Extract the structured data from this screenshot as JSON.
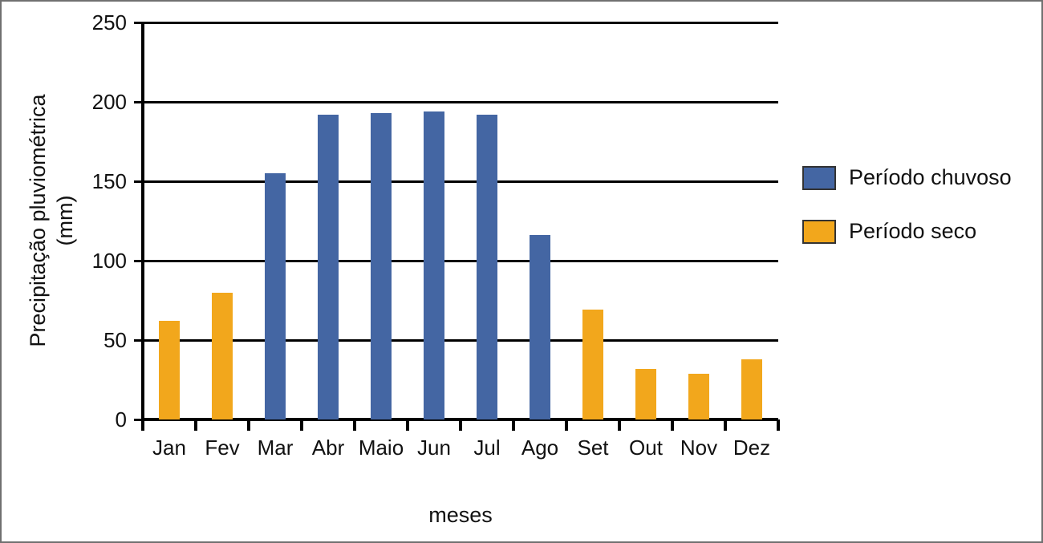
{
  "chart_data": {
    "type": "bar",
    "title": "",
    "xlabel": "meses",
    "ylabel_line1": "Precipitação pluviométrica",
    "ylabel_line2": "(mm)",
    "categories": [
      "Jan",
      "Fev",
      "Mar",
      "Abr",
      "Maio",
      "Jun",
      "Jul",
      "Ago",
      "Set",
      "Out",
      "Nov",
      "Dez"
    ],
    "values": [
      62,
      80,
      155,
      192,
      193,
      194,
      192,
      116,
      69,
      32,
      29,
      38
    ],
    "periods": [
      "seco",
      "seco",
      "chuvoso",
      "chuvoso",
      "chuvoso",
      "chuvoso",
      "chuvoso",
      "chuvoso",
      "seco",
      "seco",
      "seco",
      "seco"
    ],
    "y_ticks": [
      0,
      50,
      100,
      150,
      200,
      250
    ],
    "ylim": [
      0,
      250
    ],
    "grid": "horizontal",
    "legend_position": "right",
    "legend": [
      {
        "id": "chuvoso",
        "label": "Período chuvoso",
        "color": "#4466A3"
      },
      {
        "id": "seco",
        "label": "Período seco",
        "color": "#F2A71C"
      }
    ]
  },
  "colors": {
    "rainy_bar": "#4466A3",
    "dry_bar": "#F2A71C",
    "axis": "#000000",
    "frame_border": "#707070"
  }
}
